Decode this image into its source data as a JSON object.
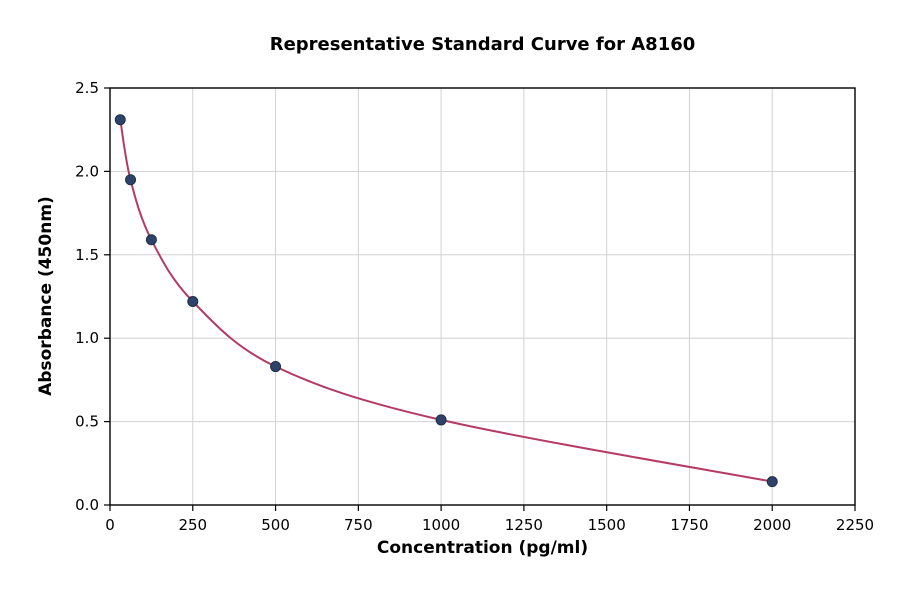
{
  "chart_data": {
    "type": "scatter",
    "title": "Representative Standard Curve for A8160",
    "xlabel": "Concentration (pg/ml)",
    "ylabel": "Absorbance (450nm)",
    "xlim": [
      0,
      2250
    ],
    "ylim": [
      0,
      2.5
    ],
    "grid": true,
    "legend": "none",
    "x_ticks": [
      0,
      250,
      500,
      750,
      1000,
      1250,
      1500,
      1750,
      2000,
      2250
    ],
    "x_tick_labels": [
      "0",
      "250",
      "500",
      "750",
      "1000",
      "1250",
      "1500",
      "1750",
      "2000",
      "2250"
    ],
    "y_ticks": [
      0.0,
      0.5,
      1.0,
      1.5,
      2.0,
      2.5
    ],
    "y_tick_labels": [
      "0.0",
      "0.5",
      "1.0",
      "1.5",
      "2.0",
      "2.5"
    ],
    "series": [
      {
        "name": "standard-points",
        "type": "scatter",
        "x": [
          31,
          62,
          125,
          250,
          500,
          1000,
          2000
        ],
        "y": [
          2.31,
          1.95,
          1.59,
          1.22,
          0.83,
          0.51,
          0.14
        ]
      },
      {
        "name": "fit-curve",
        "type": "line",
        "x": [
          31,
          62,
          125,
          250,
          500,
          1000,
          2000
        ],
        "y": [
          2.31,
          1.95,
          1.59,
          1.22,
          0.83,
          0.51,
          0.14
        ]
      }
    ],
    "colors": {
      "point": "#2e4369",
      "point_edge": "#1f2d49",
      "curve": "#b53b62",
      "grid": "#d2d2d2",
      "axis": "#000000",
      "background": "#ffffff"
    }
  }
}
